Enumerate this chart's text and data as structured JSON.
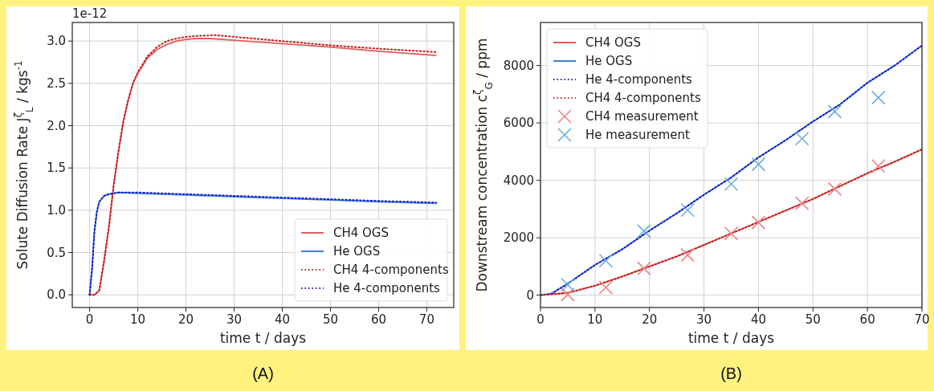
{
  "chart_data": [
    {
      "type": "line",
      "xlabel": "time t / days",
      "ylabel": "Solute Diffusion Rate J$^{ζ}$$_{L}$ / kgs$^{-1}$",
      "annotations": [
        "1e-12",
        "(A)"
      ],
      "xlim": [
        -3.6,
        75.6
      ],
      "ylim": [
        -0.15,
        3.22
      ],
      "xticks": [
        0,
        10,
        20,
        30,
        40,
        50,
        60,
        70
      ],
      "yticks": [
        {
          "value": 0,
          "label": "0.0"
        },
        {
          "value": 0.5,
          "label": "0.5"
        },
        {
          "value": 1,
          "label": "1.0"
        },
        {
          "value": 1.5,
          "label": "1.5"
        },
        {
          "value": 2,
          "label": "2.0"
        },
        {
          "value": 2.5,
          "label": "2.5"
        },
        {
          "value": 3,
          "label": "3.0"
        }
      ],
      "grid": true,
      "legend": "bottom right",
      "series": [
        {
          "name": "CH4 OGS",
          "color": "#e05c5c",
          "line_style": "solid",
          "x": [
            0,
            1,
            2,
            3,
            4,
            5,
            6,
            7,
            8,
            9,
            10,
            12,
            14,
            16,
            18,
            20,
            22,
            25,
            30,
            40,
            50,
            60,
            72
          ],
          "values": [
            0,
            0,
            0.05,
            0.4,
            0.8,
            1.3,
            1.7,
            2.05,
            2.3,
            2.5,
            2.62,
            2.8,
            2.9,
            2.96,
            3.0,
            3.02,
            3.03,
            3.03,
            3.01,
            2.97,
            2.93,
            2.88,
            2.83
          ]
        },
        {
          "name": "He OGS",
          "color": "#3a85d0",
          "line_style": "solid",
          "x": [
            0,
            0.5,
            1,
            1.5,
            2,
            3,
            4,
            5,
            6,
            10,
            20,
            30,
            40,
            50,
            60,
            72
          ],
          "values": [
            0,
            0.3,
            0.75,
            0.98,
            1.1,
            1.17,
            1.19,
            1.2,
            1.21,
            1.2,
            1.18,
            1.16,
            1.14,
            1.12,
            1.1,
            1.08
          ]
        },
        {
          "name": "CH4 4-components",
          "color": "#c42020",
          "line_style": "dotted",
          "x": [
            0,
            1,
            2,
            3,
            4,
            5,
            6,
            7,
            8,
            9,
            10,
            12,
            14,
            16,
            18,
            20,
            22,
            26,
            30,
            40,
            50,
            60,
            72
          ],
          "values": [
            0,
            0,
            0.05,
            0.4,
            0.8,
            1.3,
            1.7,
            2.05,
            2.3,
            2.5,
            2.63,
            2.82,
            2.93,
            3.0,
            3.03,
            3.05,
            3.06,
            3.07,
            3.05,
            3.0,
            2.95,
            2.91,
            2.87
          ]
        },
        {
          "name": "He 4-components",
          "color": "#1a1ad0",
          "line_style": "dotted",
          "x": [
            0,
            0.5,
            1,
            1.5,
            2,
            3,
            4,
            5,
            6,
            10,
            20,
            30,
            40,
            50,
            60,
            72
          ],
          "values": [
            0,
            0.3,
            0.75,
            0.98,
            1.1,
            1.17,
            1.19,
            1.2,
            1.21,
            1.21,
            1.19,
            1.17,
            1.15,
            1.13,
            1.11,
            1.09
          ]
        }
      ]
    },
    {
      "type": "line",
      "xlabel": "time t / days",
      "ylabel": "Downstream concentration c$^{ζ}$$_{G}$ / ppm",
      "annotations": [
        "(B)"
      ],
      "xlim": [
        0,
        70
      ],
      "ylim": [
        -430,
        9500
      ],
      "xticks": [
        0,
        10,
        20,
        30,
        40,
        50,
        60,
        70
      ],
      "yticks": [
        0,
        2000,
        4000,
        6000,
        8000
      ],
      "grid": true,
      "legend": "top left",
      "series": [
        {
          "name": "CH4 OGS",
          "color": "#e05c5c",
          "line_style": "solid",
          "x": [
            0,
            5,
            10,
            15,
            20,
            25,
            30,
            35,
            40,
            45,
            50,
            55,
            60,
            65,
            70
          ],
          "values": [
            0,
            80,
            330,
            650,
            1000,
            1350,
            1750,
            2150,
            2550,
            2950,
            3350,
            3800,
            4250,
            4650,
            5080
          ]
        },
        {
          "name": "He OGS",
          "color": "#3a85d0",
          "line_style": "solid",
          "x": [
            0,
            2,
            5,
            10,
            15,
            20,
            25,
            30,
            35,
            40,
            45,
            50,
            55,
            60,
            65,
            70
          ],
          "values": [
            0,
            50,
            400,
            1050,
            1600,
            2250,
            2850,
            3500,
            4100,
            4800,
            5400,
            6050,
            6650,
            7400,
            8000,
            8700
          ]
        },
        {
          "name": "He 4-components",
          "color": "#1a1ad0",
          "line_style": "dotted",
          "x": [
            0,
            2,
            5,
            10,
            15,
            20,
            25,
            30,
            35,
            40,
            45,
            50,
            55,
            60,
            65,
            70
          ],
          "values": [
            0,
            50,
            400,
            1050,
            1600,
            2250,
            2850,
            3500,
            4100,
            4800,
            5400,
            6050,
            6650,
            7400,
            8000,
            8700
          ]
        },
        {
          "name": "CH4 4-components",
          "color": "#c42020",
          "line_style": "dotted",
          "x": [
            0,
            5,
            10,
            15,
            20,
            25,
            30,
            35,
            40,
            45,
            50,
            55,
            60,
            65,
            70
          ],
          "values": [
            0,
            80,
            330,
            650,
            1000,
            1350,
            1750,
            2150,
            2550,
            2950,
            3350,
            3800,
            4250,
            4650,
            5080
          ]
        },
        {
          "name": "CH4 measurement",
          "type": "scatter",
          "marker": "cross",
          "color": "#f08080",
          "x": [
            5,
            12,
            19,
            27,
            35,
            40,
            48,
            54,
            62
          ],
          "values": [
            20,
            270,
            930,
            1400,
            2150,
            2530,
            3200,
            3700,
            4500
          ]
        },
        {
          "name": "He measurement",
          "type": "scatter",
          "marker": "cross",
          "color": "#6aaee0",
          "x": [
            5,
            12,
            19,
            27,
            35,
            40,
            48,
            54,
            62
          ],
          "values": [
            360,
            1200,
            2230,
            2960,
            3870,
            4560,
            5450,
            6400,
            6880
          ]
        }
      ]
    }
  ]
}
